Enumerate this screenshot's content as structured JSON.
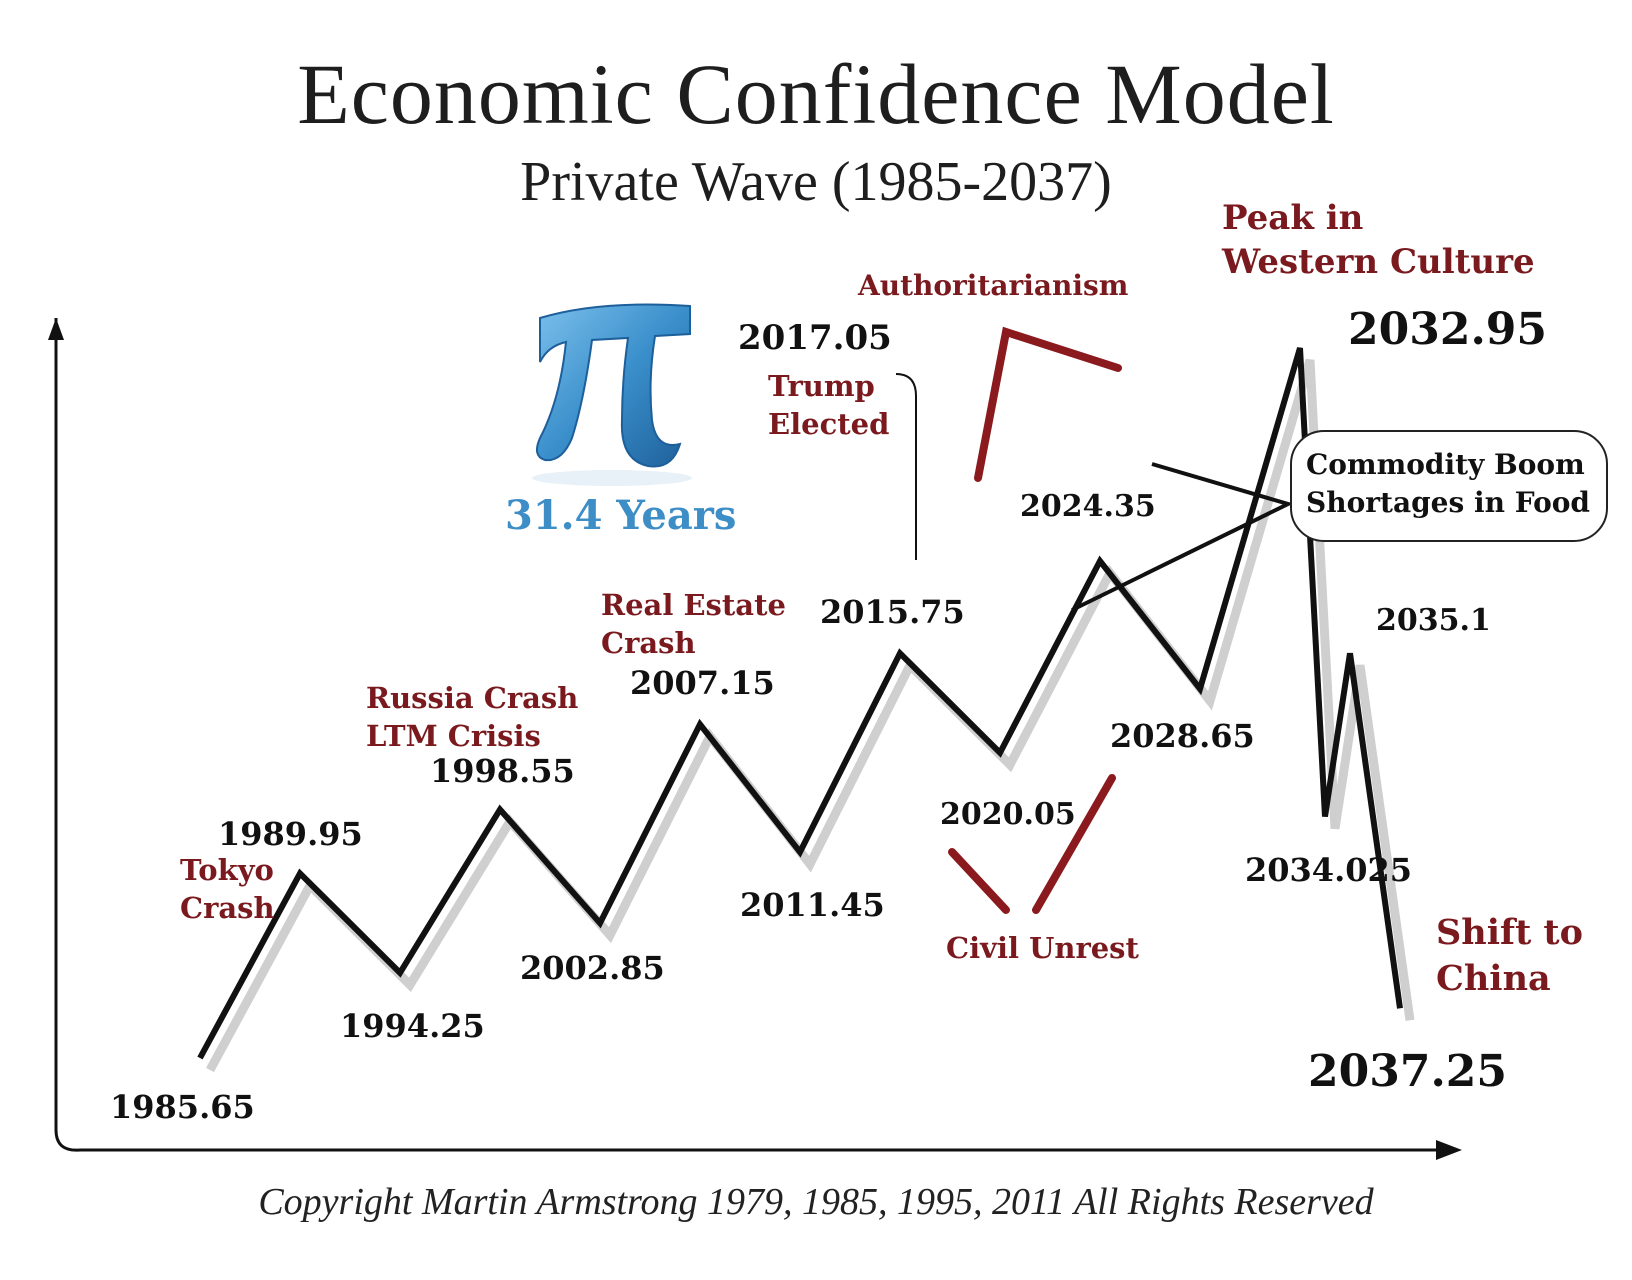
{
  "title": "Economic Confidence Model",
  "subtitle": "Private Wave (1985-2037)",
  "pi_label": "31.4 Years",
  "callout": [
    "Commodity Boom",
    "Shortages in Food"
  ],
  "copyright": "Copyright Martin Armstrong 1979, 1985, 1995, 2011 All Rights Reserved",
  "colors": {
    "wave": "#111111",
    "event_text": "#7a1a1e",
    "event_marker": "#8b1a1e",
    "pi": "#3d8ec6"
  },
  "events": {
    "tokyo": [
      "Tokyo",
      "Crash"
    ],
    "russia": [
      "Russia Crash",
      "LTM Crisis"
    ],
    "real_estate": [
      "Real Estate",
      "Crash"
    ],
    "trump": [
      "Trump",
      "Elected"
    ],
    "authoritarianism": "Authoritarianism",
    "peak": [
      "Peak in",
      "Western Culture"
    ],
    "civil_unrest": "Civil Unrest",
    "shift": [
      "Shift to",
      "China"
    ]
  },
  "chart_data": {
    "type": "line",
    "title": "Economic Confidence Model",
    "subtitle": "Private Wave (1985-2037)",
    "grid": false,
    "points": [
      {
        "label": "1985.65",
        "x": 1985.65,
        "level": 0.0
      },
      {
        "label": "1989.95",
        "x": 1989.95,
        "level": 0.26
      },
      {
        "label": "1994.25",
        "x": 1994.25,
        "level": 0.12
      },
      {
        "label": "1998.55",
        "x": 1998.55,
        "level": 0.35
      },
      {
        "label": "2002.85",
        "x": 2002.85,
        "level": 0.19
      },
      {
        "label": "2007.15",
        "x": 2007.15,
        "level": 0.47
      },
      {
        "label": "2011.45",
        "x": 2011.45,
        "level": 0.29
      },
      {
        "label": "2015.75",
        "x": 2015.75,
        "level": 0.57
      },
      {
        "label": "2020.05",
        "x": 2020.05,
        "level": 0.43
      },
      {
        "label": "2024.35",
        "x": 2024.35,
        "level": 0.7
      },
      {
        "label": "2028.65",
        "x": 2028.65,
        "level": 0.52
      },
      {
        "label": "2032.95",
        "x": 2032.95,
        "level": 1.0
      },
      {
        "label": "2034.025",
        "x": 2034.025,
        "level": 0.34
      },
      {
        "label": "2035.1",
        "x": 2035.1,
        "level": 0.57
      },
      {
        "label": "2037.25",
        "x": 2037.25,
        "level": 0.07
      }
    ],
    "extra_labels": [
      "2017.05"
    ]
  }
}
